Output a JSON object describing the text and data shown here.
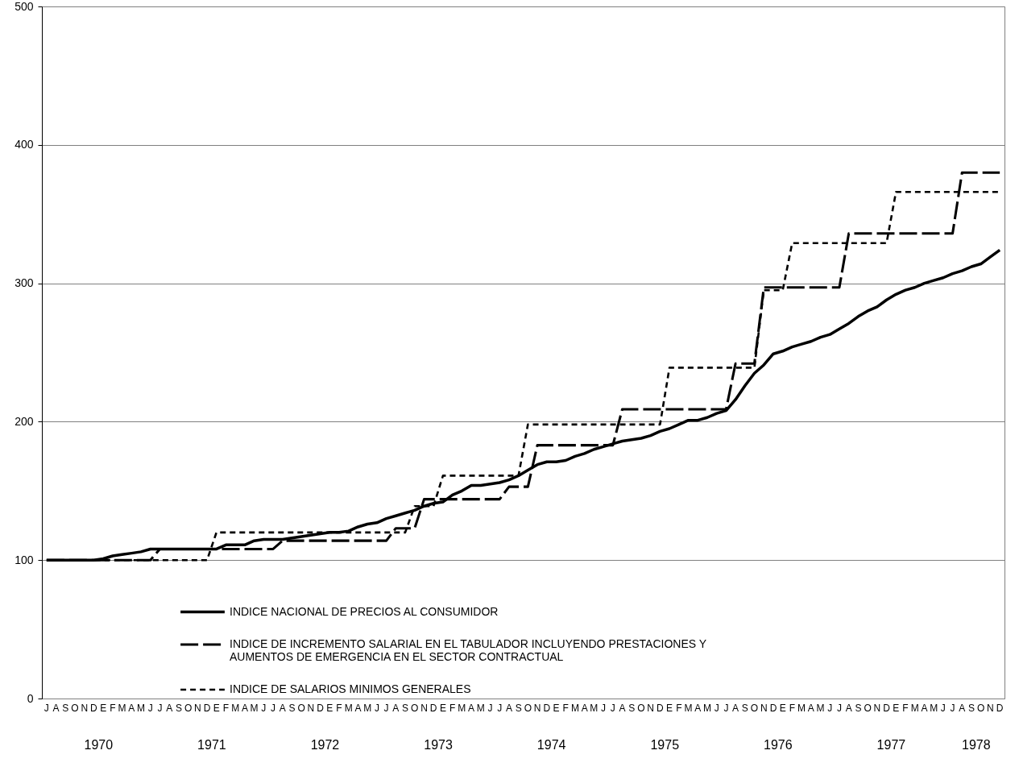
{
  "chart_data": {
    "type": "line",
    "categories": [
      "J",
      "A",
      "S",
      "O",
      "N",
      "D",
      "E",
      "F",
      "M",
      "A",
      "M",
      "J",
      "J",
      "A",
      "S",
      "O",
      "N",
      "D",
      "E",
      "F",
      "M",
      "A",
      "M",
      "J",
      "J",
      "A",
      "S",
      "O",
      "N",
      "D",
      "E",
      "F",
      "M",
      "A",
      "M",
      "J",
      "J",
      "A",
      "S",
      "O",
      "N",
      "D",
      "E",
      "F",
      "M",
      "A",
      "M",
      "J",
      "J",
      "A",
      "S",
      "O",
      "N",
      "D",
      "E",
      "F",
      "M",
      "A",
      "M",
      "J",
      "J",
      "A",
      "S",
      "O",
      "N",
      "D",
      "E",
      "F",
      "M",
      "A",
      "M",
      "J",
      "J",
      "A",
      "S",
      "O",
      "N",
      "D",
      "E",
      "F",
      "M",
      "A",
      "M",
      "J",
      "J",
      "A",
      "S",
      "O",
      "N",
      "D",
      "E",
      "F",
      "M",
      "A",
      "M",
      "J",
      "J",
      "A",
      "S",
      "O",
      "N",
      "D"
    ],
    "series": [
      {
        "name": "INDICE NACIONAL DE PRECIOS AL CONSUMIDOR",
        "color": "#000000",
        "line_style": "solid",
        "values": [
          100,
          100,
          100,
          100,
          100,
          100,
          101,
          103,
          104,
          105,
          106,
          108,
          108,
          108,
          108,
          108,
          108,
          108,
          108,
          111,
          111,
          111,
          114,
          115,
          115,
          115,
          116,
          117,
          118,
          119,
          120,
          120,
          121,
          124,
          126,
          127,
          130,
          132,
          134,
          136,
          139,
          141,
          142,
          147,
          150,
          154,
          154,
          155,
          156,
          158,
          161,
          165,
          169,
          171,
          171,
          172,
          175,
          177,
          180,
          182,
          184,
          186,
          187,
          188,
          190,
          193,
          195,
          198,
          201,
          201,
          203,
          206,
          208,
          216,
          226,
          235,
          241,
          249,
          251,
          254,
          256,
          258,
          261,
          263,
          267,
          271,
          276,
          280,
          283,
          288,
          292,
          295,
          297,
          300,
          302,
          304,
          307,
          309,
          312,
          314,
          319,
          324
        ]
      },
      {
        "name": "INDICE DE INCREMENTO SALARIAL EN EL TABULADOR INCLUYENDO PRESTACIONES Y AUMENTOS DE EMERGENCIA EN EL SECTOR CONTRACTUAL",
        "color": "#000000",
        "line_style": "dashed",
        "values": [
          100,
          100,
          100,
          100,
          100,
          100,
          100,
          100,
          100,
          100,
          100,
          100,
          108,
          108,
          108,
          108,
          108,
          108,
          108,
          108,
          108,
          108,
          108,
          108,
          108,
          114,
          114,
          114,
          114,
          114,
          114,
          114,
          114,
          114,
          114,
          114,
          114,
          123,
          123,
          123,
          144,
          144,
          144,
          144,
          144,
          144,
          144,
          144,
          144,
          153,
          153,
          153,
          183,
          183,
          183,
          183,
          183,
          183,
          183,
          183,
          183,
          209,
          209,
          209,
          209,
          209,
          209,
          209,
          209,
          209,
          209,
          209,
          209,
          242,
          242,
          242,
          297,
          297,
          297,
          297,
          297,
          297,
          297,
          297,
          297,
          336,
          336,
          336,
          336,
          336,
          336,
          336,
          336,
          336,
          336,
          336,
          336,
          380,
          380,
          380,
          380,
          380
        ]
      },
      {
        "name": "INDICE DE SALARIOS MINIMOS GENERALES",
        "color": "#000000",
        "line_style": "dotted",
        "values": [
          100,
          100,
          100,
          100,
          100,
          100,
          100,
          100,
          100,
          100,
          100,
          100,
          100,
          100,
          100,
          100,
          100,
          100,
          120,
          120,
          120,
          120,
          120,
          120,
          120,
          120,
          120,
          120,
          120,
          120,
          120,
          120,
          120,
          120,
          120,
          120,
          120,
          120,
          120,
          139,
          139,
          139,
          161,
          161,
          161,
          161,
          161,
          161,
          161,
          161,
          161,
          198,
          198,
          198,
          198,
          198,
          198,
          198,
          198,
          198,
          198,
          198,
          198,
          198,
          198,
          198,
          239,
          239,
          239,
          239,
          239,
          239,
          239,
          239,
          239,
          239,
          295,
          295,
          295,
          329,
          329,
          329,
          329,
          329,
          329,
          329,
          329,
          329,
          329,
          329,
          366,
          366,
          366,
          366,
          366,
          366,
          366,
          366,
          366,
          366,
          366,
          366
        ]
      }
    ],
    "annotations": [
      "1970",
      "1971",
      "1972",
      "1973",
      "1974",
      "1975",
      "1976",
      "1977",
      "1978"
    ],
    "ylim": [
      0,
      500
    ],
    "yticks": [
      0,
      100,
      200,
      300,
      400,
      500
    ],
    "grid": "y",
    "legend": "bottom"
  }
}
